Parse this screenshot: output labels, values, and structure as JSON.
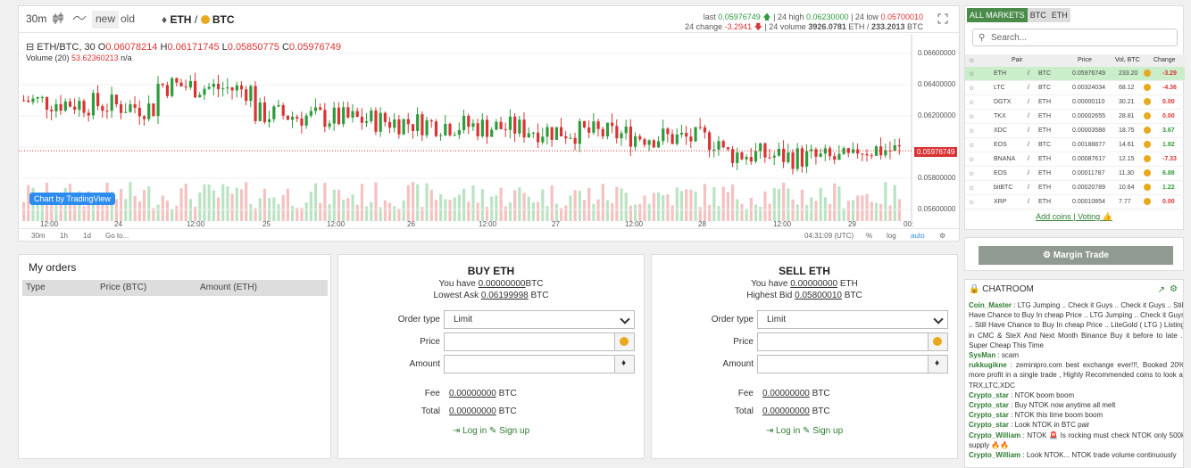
{
  "toolbar": {
    "timeframe": "30m",
    "style_new": "new",
    "style_old": "old",
    "pair_base": "ETH",
    "pair_sep": "/",
    "pair_quote": "BTC"
  },
  "stats": {
    "last_label": "last",
    "last": "0.05976749",
    "high_label": "| 24 high",
    "high": "0.06230000",
    "low_label": "| 24 low",
    "low": "0.05700010",
    "change_label": "24 change",
    "change": "-3.2941",
    "volume_label": "| 24 volume",
    "volume_eth": "3926.0781",
    "volume_eth_unit": "ETH /",
    "volume_btc": "233.2013",
    "volume_btc_unit": "BTC"
  },
  "chart_legend": {
    "symbol": "ETH/BTC, 30",
    "o_label": "O",
    "o": "0.06078214",
    "h_label": "H",
    "h": "0.06171745",
    "l_label": "L",
    "l": "0.05850775",
    "c_label": "C",
    "c": "0.05976749",
    "volume_label": "Volume (20)",
    "volume_value": "53.62360213",
    "volume_na": "n/a",
    "tv_badge": "Chart by TradingView",
    "current_price": "0.05976749"
  },
  "chart_data": {
    "type": "candlestick",
    "x_ticks": [
      "12:00",
      "24",
      "12:00",
      "25",
      "12:00",
      "26",
      "12:00",
      "27",
      "12:00",
      "28",
      "12:00",
      "29",
      "00:"
    ],
    "y_ticks": [
      "0.06600000",
      "0.06400000",
      "0.06200000",
      "0.05800000",
      "0.05600000"
    ],
    "ylim": [
      0.0556,
      0.0668
    ],
    "series": [
      {
        "name": "ETH/BTC",
        "close_start": 0.063,
        "close_end": 0.05976749
      }
    ]
  },
  "chart_bottom": {
    "ranges": [
      "30m",
      "1h",
      "1d",
      "Go to..."
    ],
    "time": "04:31:09 (UTC)",
    "pct": "%",
    "log": "log",
    "auto": "auto"
  },
  "my_orders": {
    "title": "My orders",
    "cols": [
      "Type",
      "Price (BTC)",
      "Amount (ETH)"
    ]
  },
  "buy": {
    "title": "BUY ETH",
    "have_prefix": "You have",
    "have_value": "0.00000000",
    "have_unit": "BTC",
    "ask_label": "Lowest Ask",
    "ask_value": "0.06199998",
    "ask_unit": "BTC",
    "order_type_label": "Order type",
    "order_type_value": "Limit",
    "price_label": "Price",
    "amount_label": "Amount",
    "fee_label": "Fee",
    "fee_value": "0.00000000",
    "fee_unit": "BTC",
    "total_label": "Total",
    "total_value": "0.00000000",
    "total_unit": "BTC",
    "login": "Log in",
    "signup": "Sign up"
  },
  "sell": {
    "title": "SELL ETH",
    "have_prefix": "You have",
    "have_value": "0.00000000",
    "have_unit": "ETH",
    "bid_label": "Highest Bid",
    "bid_value": "0.05800010",
    "bid_unit": "BTC",
    "order_type_label": "Order type",
    "order_type_value": "Limit",
    "price_label": "Price",
    "amount_label": "Amount",
    "fee_label": "Fee",
    "fee_value": "0.00000000",
    "fee_unit": "BTC",
    "total_label": "Total",
    "total_value": "0.00000000",
    "total_unit": "BTC",
    "login": "Log in",
    "signup": "Sign up"
  },
  "market": {
    "tabs": [
      "ALL MARKETS",
      "BTC",
      "ETH"
    ],
    "search_placeholder": "Search...",
    "cols": [
      "Pair",
      "Price",
      "Vol, BTC",
      "Change"
    ],
    "rows": [
      {
        "base": "ETH",
        "quote": "BTC",
        "price": "0.05976749",
        "vol": "233.20",
        "change": "-3.29",
        "neg": true
      },
      {
        "base": "LTC",
        "quote": "BTC",
        "price": "0.00324034",
        "vol": "68.12",
        "change": "-4.36",
        "neg": true
      },
      {
        "base": "DGTX",
        "quote": "ETH",
        "price": "0.00000110",
        "vol": "30.21",
        "change": "0.00",
        "neg": true
      },
      {
        "base": "TKX",
        "quote": "ETH",
        "price": "0.00002655",
        "vol": "28.81",
        "change": "0.00",
        "neg": true
      },
      {
        "base": "XDC",
        "quote": "ETH",
        "price": "0.00003588",
        "vol": "18.75",
        "change": "3.67",
        "neg": false
      },
      {
        "base": "EOS",
        "quote": "BTC",
        "price": "0.00188877",
        "vol": "14.61",
        "change": "1.82",
        "neg": false
      },
      {
        "base": "BNANA",
        "quote": "ETH",
        "price": "0.00087617",
        "vol": "12.15",
        "change": "-7.33",
        "neg": true
      },
      {
        "base": "EOS",
        "quote": "ETH",
        "price": "0.00011787",
        "vol": "11.30",
        "change": "6.88",
        "neg": false
      },
      {
        "base": "bitBTC",
        "quote": "ETH",
        "price": "0.00020789",
        "vol": "10.64",
        "change": "1.22",
        "neg": false
      },
      {
        "base": "XRP",
        "quote": "ETH",
        "price": "0.00010854",
        "vol": "7.77",
        "change": "0.00",
        "neg": true
      }
    ],
    "footer_add": "Add coins",
    "footer_sep": "|",
    "footer_voting": "Voting"
  },
  "margin": {
    "label": "Margin Trade"
  },
  "chat": {
    "title": "CHATROOM",
    "messages": [
      {
        "user": "Coin_Master",
        "text": ": LTG Jumping .. Check it Guys .. Check it Guys .. Still Have Chance to Buy In cheap Price .. LTG Jumping .. Check it Guys .. Still Have Chance to Buy In cheap Price .. LiteGold ( LTG ) Listing in CMC & SteX And Next Month Binance Buy it before to late .. Super Cheap This Time"
      },
      {
        "user": "SysMan",
        "text": ": scam"
      },
      {
        "user": "rukkugikne",
        "text": ": zeminipro.com best exchange ever!!!, Booked 20% more profit in a single trade , Highly Recommended coins to look at TRX,LTC,XDC"
      },
      {
        "user": "Crypto_star",
        "text": ": NTOK boom boom"
      },
      {
        "user": "Crypto_star",
        "text": ": Buy NTOK now anytime all melt"
      },
      {
        "user": "Crypto_star",
        "text": ": NTOK this time boom boom"
      },
      {
        "user": "Crypto_star",
        "text": ": Look NTOK in BTC pair"
      },
      {
        "user": "Crypto_William",
        "text": ": NTOK 🚨 Is rocking must check NTOK only 500k supply 🔥🔥"
      },
      {
        "user": "Crypto_William",
        "text": ": Look NTOK... NTOK trade volume continuously"
      }
    ]
  },
  "colors": {
    "up": "#2e9b3c",
    "down": "#d93434",
    "accent": "#4a8b4a"
  }
}
